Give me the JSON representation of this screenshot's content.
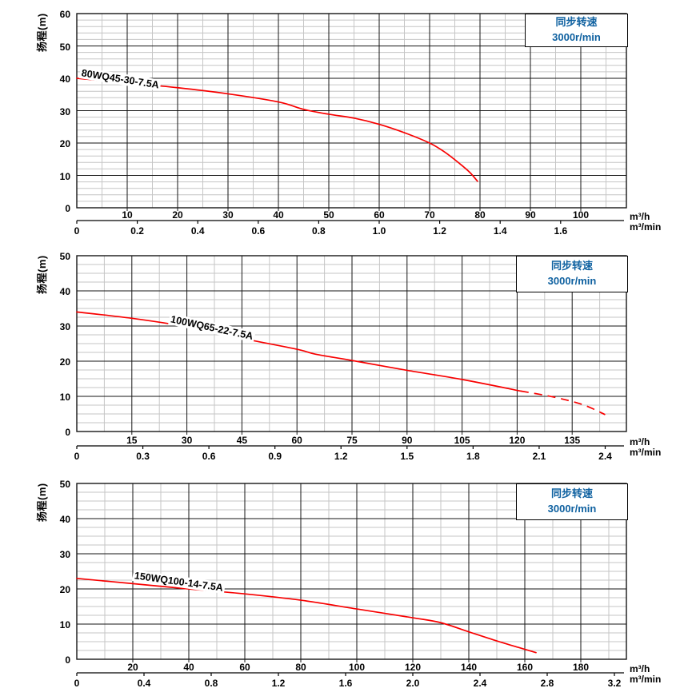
{
  "page": {
    "background": "#ffffff"
  },
  "colors": {
    "curve_red": "#f80000",
    "major_grid": "#161616",
    "minor_grid": "#c6c6c6",
    "accent_blue": "#0f61a0",
    "text": "#000000"
  },
  "chart_data": [
    {
      "type": "line",
      "ylabel": "扬程(m)",
      "x_unit_primary": "m³/h",
      "x_unit_secondary": "m³/min",
      "sync_speed_line1": "同步转速",
      "sync_speed_line2": "3000r/min",
      "ylim": [
        0,
        60
      ],
      "y_major_ticks": [
        0,
        10,
        20,
        30,
        40,
        50,
        60
      ],
      "y_minor_step": 2,
      "xlim": [
        0,
        109
      ],
      "x_major_step": 10,
      "x_minor_step": 5,
      "x_ticks_primary": [
        10,
        20,
        30,
        40,
        50,
        60,
        70,
        80,
        90,
        100
      ],
      "x_ticks_secondary": [
        {
          "v": 0,
          "label": "0"
        },
        {
          "v": 0.2,
          "label": "0.2"
        },
        {
          "v": 0.4,
          "label": "0.4"
        },
        {
          "v": 0.6,
          "label": "0.6"
        },
        {
          "v": 0.8,
          "label": "0.8"
        },
        {
          "v": 1.0,
          "label": "1.0"
        },
        {
          "v": 1.2,
          "label": "1.2"
        },
        {
          "v": 1.4,
          "label": "1.4"
        },
        {
          "v": 1.6,
          "label": "1.6"
        }
      ],
      "grid": "on",
      "series": [
        {
          "name": "80WQ45-30-7.5A",
          "points_solid": [
            [
              0,
              40
            ],
            [
              10,
              38.6
            ],
            [
              20,
              37.1
            ],
            [
              30,
              35.2
            ],
            [
              40,
              32.7
            ],
            [
              45,
              30.4
            ],
            [
              50,
              28.9
            ],
            [
              55,
              27.7
            ],
            [
              60,
              25.8
            ],
            [
              65,
              23.2
            ],
            [
              70,
              20
            ],
            [
              73,
              17.2
            ],
            [
              76,
              13.6
            ],
            [
              78,
              10.9
            ],
            [
              79.5,
              8.2
            ]
          ],
          "points_dashed": []
        }
      ]
    },
    {
      "type": "line",
      "ylabel": "扬程(m)",
      "x_unit_primary": "m³/h",
      "x_unit_secondary": "m³/min",
      "sync_speed_line1": "同步转速",
      "sync_speed_line2": "3000r/min",
      "ylim": [
        0,
        50
      ],
      "y_major_ticks": [
        0,
        10,
        20,
        30,
        40,
        50
      ],
      "y_minor_step": 2.5,
      "xlim": [
        0,
        147
      ],
      "x_major_step": 15,
      "x_minor_step": 7.5,
      "x_ticks_primary": [
        15,
        30,
        45,
        60,
        75,
        90,
        105,
        120,
        135
      ],
      "x_ticks_secondary": [
        {
          "v": 0,
          "label": "0"
        },
        {
          "v": 0.3,
          "label": "0.3"
        },
        {
          "v": 0.6,
          "label": "0.6"
        },
        {
          "v": 0.9,
          "label": "0.9"
        },
        {
          "v": 1.2,
          "label": "1.2"
        },
        {
          "v": 1.5,
          "label": "1.5"
        },
        {
          "v": 1.8,
          "label": "1.8"
        },
        {
          "v": 2.1,
          "label": "2.1"
        },
        {
          "v": 2.4,
          "label": "2.4"
        }
      ],
      "grid": "on",
      "series": [
        {
          "name": "100WQ65-22-7.5A",
          "points_solid": [
            [
              0,
              34
            ],
            [
              15,
              32.2
            ],
            [
              30,
              29.8
            ],
            [
              45,
              26.5
            ],
            [
              60,
              23.4
            ],
            [
              65,
              22
            ],
            [
              75,
              20.2
            ],
            [
              90,
              17.4
            ],
            [
              105,
              14.8
            ],
            [
              121,
              11.5
            ]
          ],
          "points_dashed": [
            [
              121,
              11.5
            ],
            [
              130,
              9.8
            ],
            [
              138,
              7.6
            ],
            [
              144,
              4.8
            ]
          ]
        }
      ]
    },
    {
      "type": "line",
      "ylabel": "扬程(m)",
      "x_unit_primary": "m³/h",
      "x_unit_secondary": "m³/min",
      "sync_speed_line1": "同步转速",
      "sync_speed_line2": "3000r/min",
      "ylim": [
        0,
        50
      ],
      "y_major_ticks": [
        0,
        10,
        20,
        30,
        40,
        50
      ],
      "y_minor_step": 2.5,
      "xlim": [
        0,
        196
      ],
      "x_major_step": 20,
      "x_minor_step": 10,
      "x_ticks_primary": [
        20,
        40,
        60,
        80,
        100,
        120,
        140,
        160,
        180
      ],
      "x_ticks_secondary": [
        {
          "v": 0,
          "label": "0"
        },
        {
          "v": 0.4,
          "label": "0.4"
        },
        {
          "v": 0.8,
          "label": "0.8"
        },
        {
          "v": 1.2,
          "label": "1.2"
        },
        {
          "v": 1.6,
          "label": "1.6"
        },
        {
          "v": 2.0,
          "label": "2.0"
        },
        {
          "v": 2.4,
          "label": "2.4"
        },
        {
          "v": 2.8,
          "label": "2.8"
        },
        {
          "v": 3.2,
          "label": "3.2"
        }
      ],
      "grid": "on",
      "series": [
        {
          "name": "150WQ100-14-7.5A",
          "points_solid": [
            [
              0,
              23
            ],
            [
              20,
              21.5
            ],
            [
              40,
              20
            ],
            [
              60,
              18.6
            ],
            [
              80,
              16.8
            ],
            [
              100,
              14.3
            ],
            [
              120,
              11.8
            ],
            [
              130,
              10.4
            ],
            [
              140,
              7.8
            ],
            [
              150,
              5.2
            ],
            [
              158,
              3.3
            ],
            [
              164,
              1.9
            ]
          ],
          "points_dashed": []
        }
      ]
    }
  ]
}
